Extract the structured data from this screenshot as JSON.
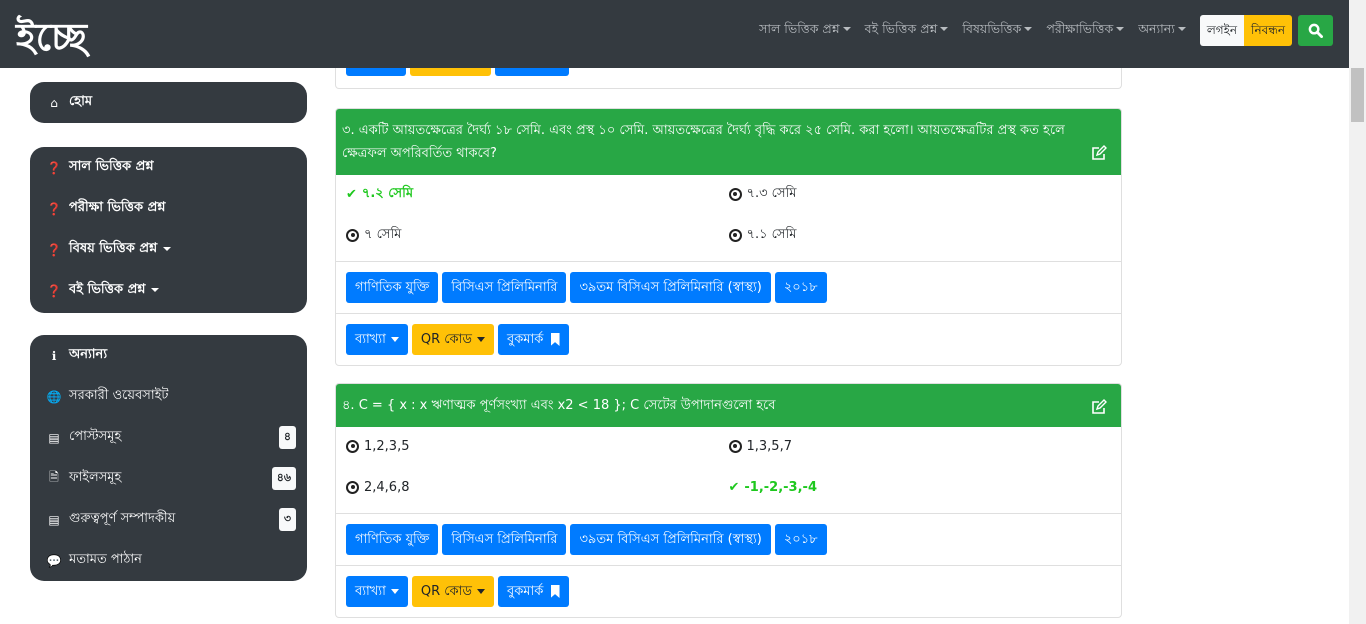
{
  "nav": {
    "logo": "ইচ্ছে",
    "menu": [
      "সাল ভিত্তিক প্রশ্ন",
      "বই ভিত্তিক প্রশ্ন",
      "বিষয়ভিত্তিক",
      "পরীক্ষাভিত্তিক",
      "অন্যান্য"
    ],
    "login": "লগইন",
    "register": "নিবন্ধন"
  },
  "sidebar": {
    "home": "হোম",
    "questions": [
      "সাল ভিত্তিক প্রশ্ন",
      "পরীক্ষা ভিত্তিক প্রশ্ন",
      "বিষয় ভিত্তিক প্রশ্ন",
      "বই ভিত্তিক প্রশ্ন"
    ],
    "other_title": "অন্যান্য",
    "other": [
      {
        "label": "সরকারী ওয়েবসাইট"
      },
      {
        "label": "পোস্টসমূহ",
        "count": "৪"
      },
      {
        "label": "ফাইলসমূহ",
        "count": "৪৬"
      },
      {
        "label": "গুরুত্বপূর্ণ সম্পাদকীয়",
        "count": "৩"
      },
      {
        "label": "মতামত পাঠান"
      }
    ]
  },
  "questions": [
    {
      "text": "৩. একটি আয়তক্ষেত্রের দৈর্ঘ্য ১৮ সেমি. এবং প্রস্থ ১০ সেমি. আয়তক্ষেত্রের দৈর্ঘ্য বৃদ্ধি করে ২৫ সেমি. করা হলো। আয়তক্ষেত্রটির প্রস্থ কত হলে ক্ষেত্রফল অপরিবর্তিত থাকবে?",
      "options": [
        "৭.২ সেমি",
        "৭.৩ সেমি",
        "৭ সেমি",
        "৭.১ সেমি"
      ],
      "correct": 0,
      "tags": [
        "গাণিতিক যুক্তি",
        "বিসিএস প্রিলিমিনারি",
        "৩৯তম বিসিএস প্রিলিমিনারি (স্বাস্থ্য)",
        "২০১৮"
      ]
    },
    {
      "text": "৪. C = { x : x ঋণাত্মক পূর্ণসংখ্যা এবং x2 < 18 }; C সেটের উপাদানগুলো হবে",
      "options": [
        "1,2,3,5",
        "1,3,5,7",
        "2,4,6,8",
        "-1,-2,-3,-4"
      ],
      "correct": 3,
      "tags": [
        "গাণিতিক যুক্তি",
        "বিসিএস প্রিলিমিনারি",
        "৩৯তম বিসিএস প্রিলিমিনারি (স্বাস্থ্য)",
        "২০১৮"
      ]
    }
  ],
  "actions": {
    "explain": "ব্যাখ্যা",
    "qr": "QR কোড",
    "bookmark": "বুকমার্ক"
  },
  "colors": {
    "navbar": "#343a40",
    "header": "#28a745",
    "primary": "#007bff",
    "warning": "#ffc107",
    "correct": "#1ec81e"
  }
}
